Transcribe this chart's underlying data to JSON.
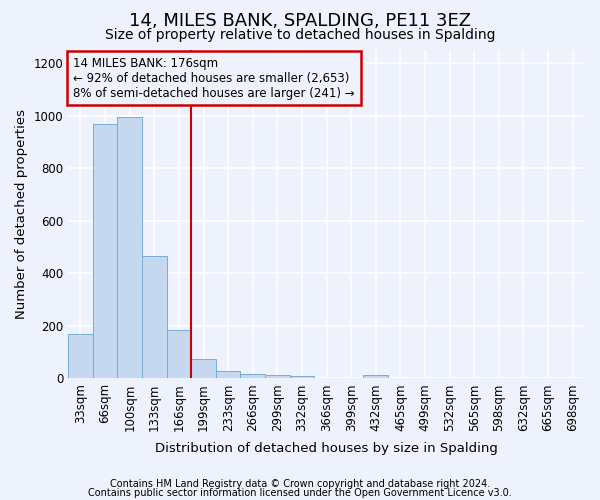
{
  "title": "14, MILES BANK, SPALDING, PE11 3EZ",
  "subtitle": "Size of property relative to detached houses in Spalding",
  "xlabel": "Distribution of detached houses by size in Spalding",
  "ylabel": "Number of detached properties",
  "footnote1": "Contains HM Land Registry data © Crown copyright and database right 2024.",
  "footnote2": "Contains public sector information licensed under the Open Government Licence v3.0.",
  "annotation_line1": "14 MILES BANK: 176sqm",
  "annotation_line2": "← 92% of detached houses are smaller (2,653)",
  "annotation_line3": "8% of semi-detached houses are larger (241) →",
  "categories": [
    "33sqm",
    "66sqm",
    "100sqm",
    "133sqm",
    "166sqm",
    "199sqm",
    "233sqm",
    "266sqm",
    "299sqm",
    "332sqm",
    "366sqm",
    "399sqm",
    "432sqm",
    "465sqm",
    "499sqm",
    "532sqm",
    "565sqm",
    "598sqm",
    "632sqm",
    "665sqm",
    "698sqm"
  ],
  "values": [
    170,
    968,
    995,
    465,
    185,
    75,
    28,
    18,
    13,
    10,
    0,
    0,
    12,
    0,
    0,
    0,
    0,
    0,
    0,
    0,
    0
  ],
  "bar_color": "#c5d8f0",
  "bar_edge_color": "#7aadd4",
  "red_line_bin_index": 4,
  "ylim": [
    0,
    1250
  ],
  "yticks": [
    0,
    200,
    400,
    600,
    800,
    1000,
    1200
  ],
  "background_color": "#eef2fc",
  "grid_color": "#ffffff",
  "annotation_box_color": "#cc0000",
  "title_fontsize": 13,
  "subtitle_fontsize": 10,
  "axis_label_fontsize": 9.5,
  "tick_fontsize": 8.5,
  "footnote_fontsize": 7
}
